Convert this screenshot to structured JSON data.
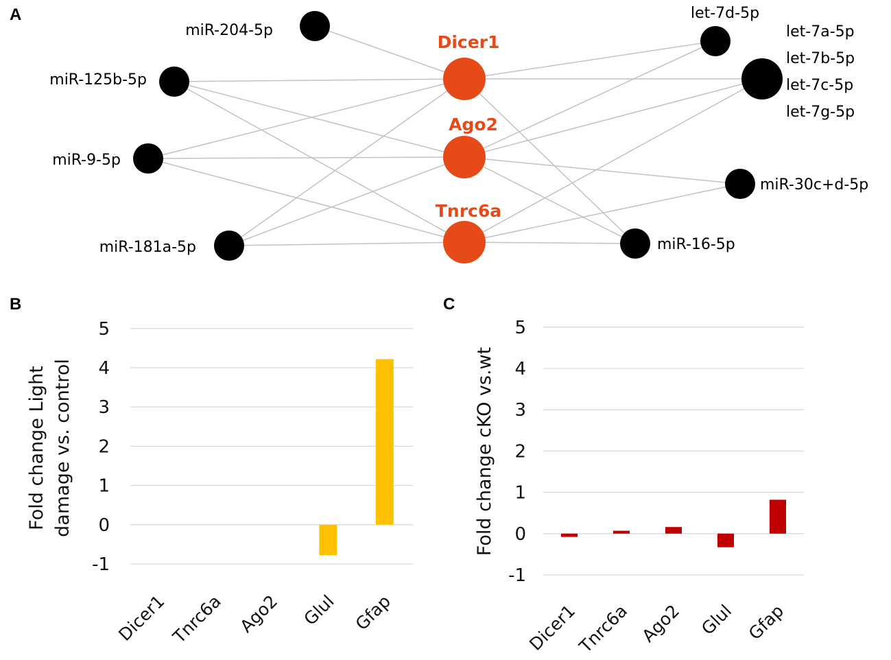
{
  "panels": {
    "a": "A",
    "b": "B",
    "c": "C"
  },
  "network": {
    "hubs": [
      {
        "id": "dicer1",
        "label": "Dicer1"
      },
      {
        "id": "ago2",
        "label": "Ago2"
      },
      {
        "id": "tnrc6a",
        "label": "Tnrc6a"
      }
    ],
    "nodes": [
      {
        "id": "mir204",
        "lines": [
          "miR-204-5p"
        ]
      },
      {
        "id": "mir125b",
        "lines": [
          "miR-125b-5p"
        ]
      },
      {
        "id": "mir9",
        "lines": [
          "miR-9-5p"
        ]
      },
      {
        "id": "mir181a",
        "lines": [
          "miR-181a-5p"
        ]
      },
      {
        "id": "let7d",
        "lines": [
          "let-7d-5p"
        ]
      },
      {
        "id": "let7abcg",
        "lines": [
          "let-7a-5p",
          "let-7b-5p",
          "let-7c-5p",
          "let-7g-5p"
        ]
      },
      {
        "id": "mir30cd",
        "lines": [
          "miR-30c+d-5p"
        ]
      },
      {
        "id": "mir16",
        "lines": [
          "miR-16-5p"
        ]
      }
    ],
    "edges": [
      [
        "mir204",
        "dicer1"
      ],
      [
        "mir125b",
        "dicer1"
      ],
      [
        "mir125b",
        "ago2"
      ],
      [
        "mir125b",
        "tnrc6a"
      ],
      [
        "mir9",
        "dicer1"
      ],
      [
        "mir9",
        "ago2"
      ],
      [
        "mir9",
        "tnrc6a"
      ],
      [
        "mir181a",
        "dicer1"
      ],
      [
        "mir181a",
        "ago2"
      ],
      [
        "mir181a",
        "tnrc6a"
      ],
      [
        "dicer1",
        "let7d"
      ],
      [
        "dicer1",
        "let7abcg"
      ],
      [
        "dicer1",
        "mir16"
      ],
      [
        "ago2",
        "let7d"
      ],
      [
        "ago2",
        "let7abcg"
      ],
      [
        "ago2",
        "mir30cd"
      ],
      [
        "ago2",
        "mir16"
      ],
      [
        "tnrc6a",
        "let7abcg"
      ],
      [
        "tnrc6a",
        "mir30cd"
      ],
      [
        "tnrc6a",
        "mir16"
      ]
    ],
    "colors": {
      "hub": "#e64a19",
      "hub_label": "#e64a19",
      "node": "#000000",
      "edge": "#c2c2c2"
    }
  },
  "chart_data": [
    {
      "type": "bar",
      "panel": "B",
      "categories": [
        "Dicer1",
        "Tnrc6a",
        "Ago2",
        "Glul",
        "Gfap"
      ],
      "values": [
        0,
        0,
        0,
        -0.78,
        4.22
      ],
      "ylabel_lines": [
        "Fold change Light",
        "damage vs. control"
      ],
      "ylim": [
        -1,
        5
      ],
      "yticks": [
        "-1",
        "0",
        "1",
        "2",
        "3",
        "4",
        "5"
      ],
      "grid": true,
      "color": "#ffc000"
    },
    {
      "type": "bar",
      "panel": "C",
      "categories": [
        "Dicer1",
        "Tnrc6a",
        "Ago2",
        "Glul",
        "Gfap"
      ],
      "values": [
        -0.08,
        0.07,
        0.16,
        -0.33,
        0.82
      ],
      "ylabel_lines": [
        "Fold change cKO vs.wt"
      ],
      "ylim": [
        -1,
        5
      ],
      "yticks": [
        "-1",
        "0",
        "1",
        "2",
        "3",
        "4",
        "5"
      ],
      "grid": true,
      "color": "#c00000"
    }
  ]
}
